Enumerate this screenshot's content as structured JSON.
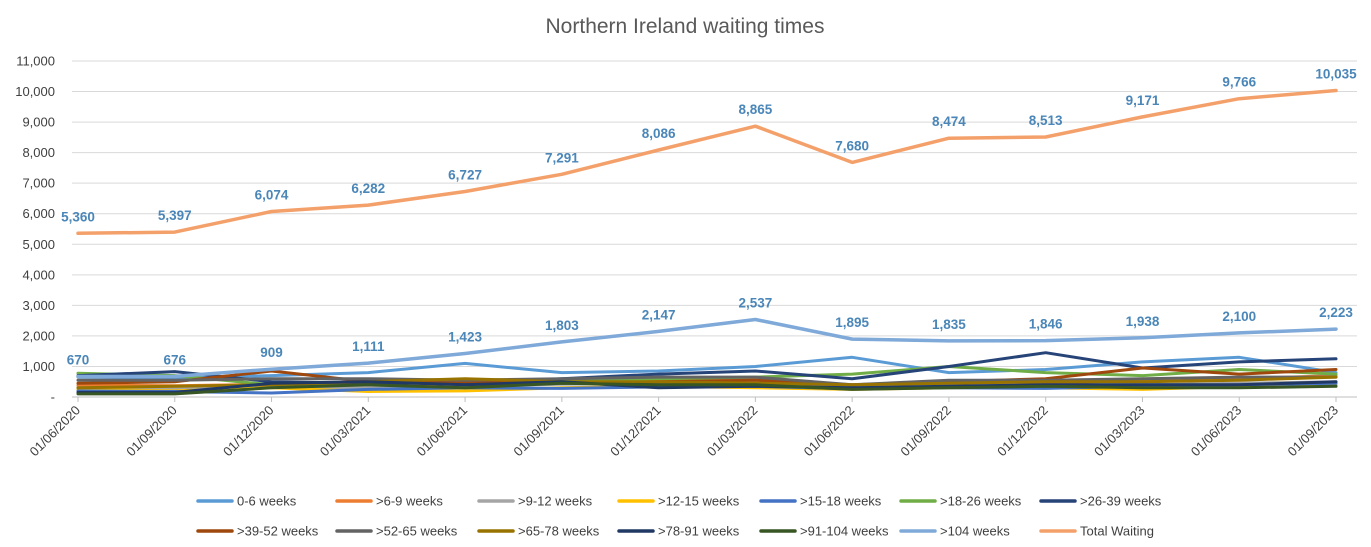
{
  "chart_data": {
    "type": "line",
    "title": "Northern Ireland waiting times",
    "categories": [
      "01/06/2020",
      "01/09/2020",
      "01/12/2020",
      "01/03/2021",
      "01/06/2021",
      "01/09/2021",
      "01/12/2021",
      "01/03/2022",
      "01/06/2022",
      "01/09/2022",
      "01/12/2022",
      "01/03/2023",
      "01/06/2023",
      "01/09/2023"
    ],
    "ylim": [
      0,
      11000
    ],
    "yticks": [
      {
        "value": 0,
        "label": "-"
      },
      {
        "value": 1000,
        "label": "1,000"
      },
      {
        "value": 2000,
        "label": "2,000"
      },
      {
        "value": 3000,
        "label": "3,000"
      },
      {
        "value": 4000,
        "label": "4,000"
      },
      {
        "value": 5000,
        "label": "5,000"
      },
      {
        "value": 6000,
        "label": "6,000"
      },
      {
        "value": 7000,
        "label": "7,000"
      },
      {
        "value": 8000,
        "label": "8,000"
      },
      {
        "value": 9000,
        "label": "9,000"
      },
      {
        "value": 10000,
        "label": "10,000"
      },
      {
        "value": 11000,
        "label": "11,000"
      }
    ],
    "grid": true,
    "legend_position": "bottom",
    "series": [
      {
        "name": "0-6 weeks",
        "color": "#5b9bd5",
        "values": [
          650,
          620,
          700,
          800,
          1100,
          800,
          850,
          1000,
          1300,
          800,
          900,
          1150,
          1300,
          800
        ]
      },
      {
        "name": ">6-9 weeks",
        "color": "#ed7d31",
        "values": [
          380,
          370,
          420,
          300,
          400,
          500,
          550,
          600,
          350,
          500,
          450,
          550,
          600,
          700
        ]
      },
      {
        "name": ">9-12 weeks",
        "color": "#a5a5a5",
        "values": [
          300,
          280,
          320,
          300,
          350,
          420,
          450,
          420,
          300,
          400,
          380,
          400,
          450,
          500
        ]
      },
      {
        "name": ">12-15 weeks",
        "color": "#ffc000",
        "values": [
          250,
          200,
          300,
          180,
          200,
          300,
          350,
          300,
          250,
          300,
          300,
          250,
          350,
          400
        ]
      },
      {
        "name": ">15-18 weeks",
        "color": "#4472c4",
        "values": [
          200,
          180,
          130,
          250,
          300,
          280,
          330,
          350,
          270,
          300,
          280,
          350,
          400,
          450
        ]
      },
      {
        "name": ">18-26 weeks",
        "color": "#70ad47",
        "values": [
          780,
          700,
          400,
          450,
          550,
          550,
          600,
          650,
          750,
          1000,
          800,
          700,
          900,
          750
        ]
      },
      {
        "name": ">26-39 weeks",
        "color": "#264478",
        "values": [
          700,
          830,
          500,
          450,
          450,
          600,
          750,
          850,
          600,
          1000,
          1450,
          950,
          1150,
          1250
        ]
      },
      {
        "name": ">39-52 weeks",
        "color": "#9e480e",
        "values": [
          450,
          500,
          850,
          500,
          500,
          450,
          500,
          550,
          400,
          500,
          600,
          950,
          750,
          900
        ]
      },
      {
        "name": ">52-65 weeks",
        "color": "#636363",
        "values": [
          550,
          550,
          600,
          600,
          550,
          600,
          650,
          650,
          400,
          550,
          550,
          600,
          650,
          650
        ]
      },
      {
        "name": ">65-78 weeks",
        "color": "#997300",
        "values": [
          300,
          350,
          400,
          500,
          600,
          500,
          500,
          450,
          400,
          450,
          500,
          500,
          550,
          650
        ]
      },
      {
        "name": ">78-91 weeks",
        "color": "#203864",
        "values": [
          150,
          150,
          450,
          500,
          400,
          500,
          300,
          350,
          300,
          350,
          400,
          400,
          400,
          500
        ]
      },
      {
        "name": ">91-104 weeks",
        "color": "#375623",
        "values": [
          100,
          100,
          300,
          400,
          300,
          450,
          400,
          400,
          250,
          300,
          350,
          300,
          300,
          350
        ]
      },
      {
        "name": ">104 weeks",
        "color": "#7ea9d8",
        "values": [
          670,
          676,
          909,
          1111,
          1423,
          1803,
          2147,
          2537,
          1895,
          1835,
          1846,
          1938,
          2100,
          2223
        ],
        "data_labels": [
          "670",
          "676",
          "909",
          "1,111",
          "1,423",
          "1,803",
          "2,147",
          "2,537",
          "1,895",
          "1,835",
          "1,846",
          "1,938",
          "2,100",
          "2,223"
        ]
      },
      {
        "name": "Total Waiting",
        "color": "#f4a06a",
        "values": [
          5360,
          5397,
          6074,
          6282,
          6727,
          7291,
          8086,
          8865,
          7680,
          8474,
          8513,
          9171,
          9766,
          10035
        ],
        "data_labels": [
          "5,360",
          "5,397",
          "6,074",
          "6,282",
          "6,727",
          "7,291",
          "8,086",
          "8,865",
          "7,680",
          "8,474",
          "8,513",
          "9,171",
          "9,766",
          "10,035"
        ]
      }
    ],
    "label_color": "#4a86b8",
    "gridline_color": "#d9d9d9",
    "axis_color": "#bfbfbf"
  }
}
